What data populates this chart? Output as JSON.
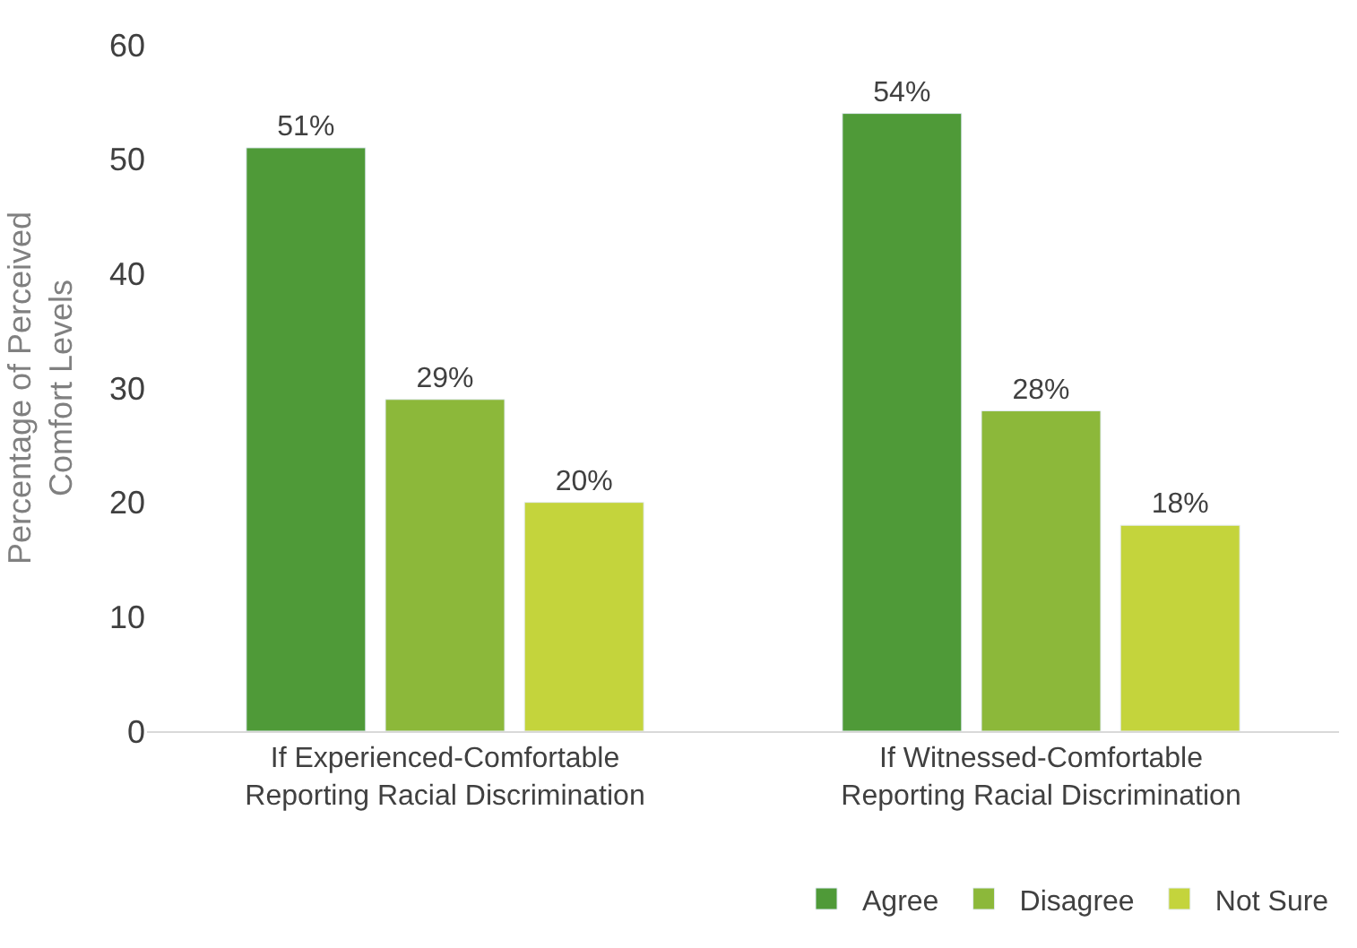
{
  "chart_data": {
    "type": "bar",
    "ylabel": "Percentage of Perceived\nComfort Levels",
    "categories": [
      "If Experienced-Comfortable\nReporting Racial Discrimination",
      "If Witnessed-Comfortable\nReporting Racial Discrimination"
    ],
    "series": [
      {
        "name": "Agree",
        "color": "#4f9a38",
        "values": [
          51,
          54
        ],
        "value_labels": [
          "51%",
          "54%"
        ]
      },
      {
        "name": "Disagree",
        "color": "#8cb83a",
        "values": [
          29,
          28
        ],
        "value_labels": [
          "29%",
          "28%"
        ]
      },
      {
        "name": "Not Sure",
        "color": "#c4d43c",
        "values": [
          20,
          18
        ],
        "value_labels": [
          "20%",
          "18%"
        ]
      }
    ],
    "ylim": [
      0,
      60
    ],
    "yticks": [
      0,
      10,
      20,
      30,
      40,
      50,
      60
    ],
    "legend": "bottom right"
  }
}
